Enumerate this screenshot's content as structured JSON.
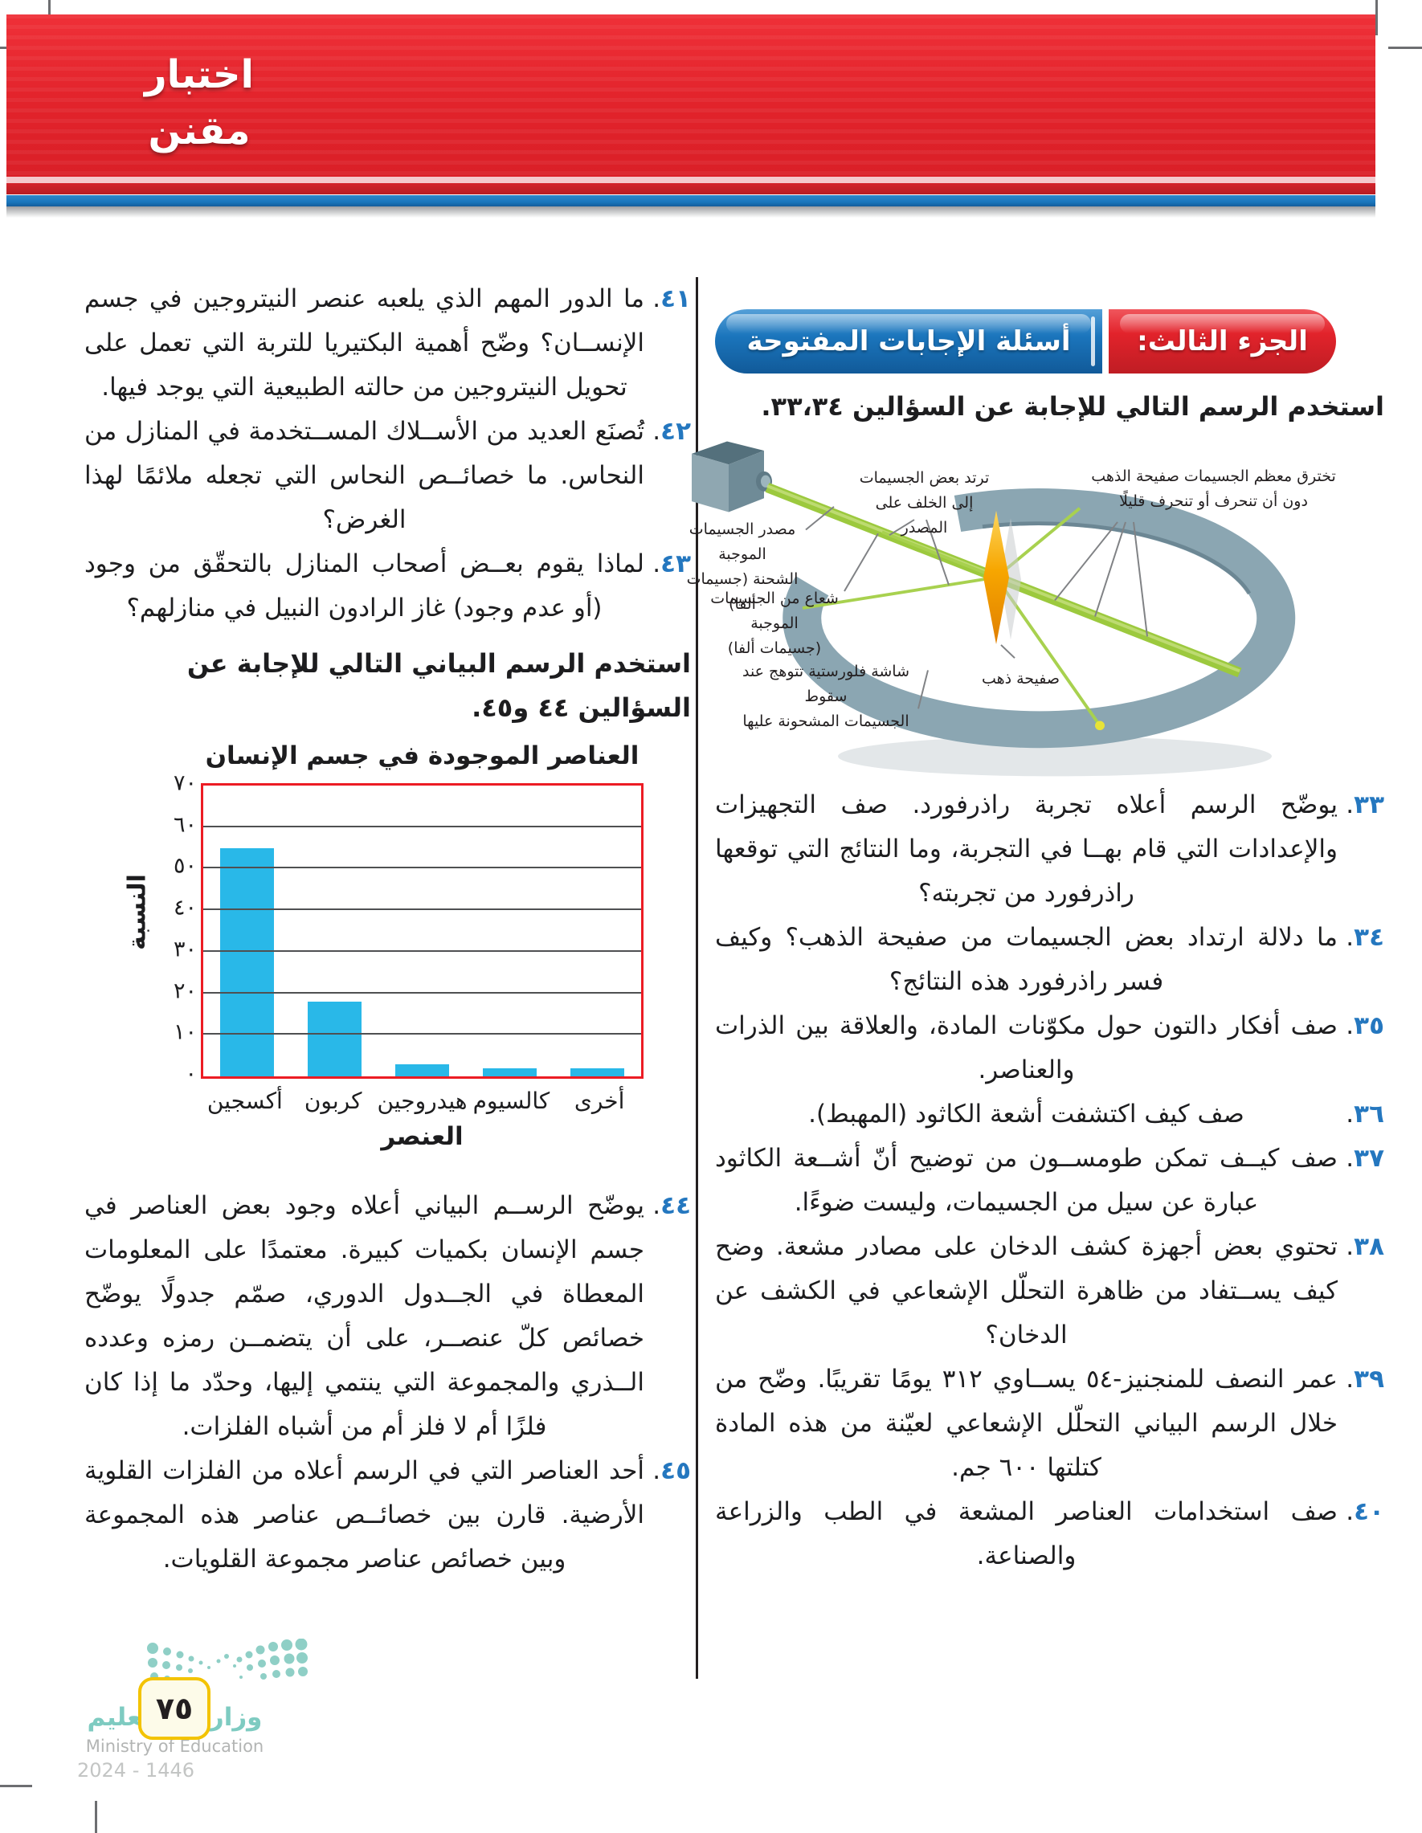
{
  "page": {
    "number": "٧٥"
  },
  "header": {
    "title_line1": "اختبار",
    "title_line2": "مقنن"
  },
  "right_column": {
    "part_badge": {
      "part_label": "الجزء الثالث:",
      "part_title": "أسئلة الإجابات المفتوحة"
    },
    "intro": "استخدم الرسم التالي للإجابة عن السؤالين ٣٣،٣٤.",
    "diagram": {
      "labels": {
        "bounce": [
          "ترتد بعض الجسيمات",
          "إلى الخلف على المصدر"
        ],
        "penetrate": [
          "تخترق معظم الجسيمات صفيحة الذهب",
          "دون أن تنحرف أو تنحرف قليلًا"
        ],
        "source": [
          "مصدر الجسيمات الموجبة",
          "الشحنة (جسيمات ألفا)"
        ],
        "beam": [
          "شعاع من الجسيمات الموجبة",
          "(جسيمات ألفا)"
        ],
        "foil": "صفيحة ذهب",
        "screen": [
          "شاشة فلورستية تتوهج عند سقوط",
          "الجسيمات المشحونة عليها"
        ]
      }
    },
    "questions": [
      {
        "number": "٣٣",
        "text": "يوضّح الرسم أعلاه تجربة راذرفورد. صف التجهيزات والإعدادات التي قام بهــا في التجربة، وما النتائج التي توقعها راذرفورد من تجربته؟"
      },
      {
        "number": "٣٤",
        "text": "ما دلالة ارتداد بعض الجسيمات من صفيحة الذهب؟ وكيف فسر راذرفورد هذه النتائج؟"
      },
      {
        "number": "٣٥",
        "text": "صف أفكار دالتون حول مكوّنات المادة، والعلاقة بين الذرات والعناصر."
      },
      {
        "number": "٣٦",
        "text": "صف كيف اكتشفت أشعة الكاثود (المهبط)."
      },
      {
        "number": "٣٧",
        "text": "صف كيــف تمكن طومســون من توضيح أنّ أشــعة الكاثود عبارة عن سيل من الجسيمات، وليست ضوءًا."
      },
      {
        "number": "٣٨",
        "text": "تحتوي بعض أجهزة كشف الدخان على مصادر مشعة. وضح كيف يســتفاد من ظاهرة التحلّل الإشعاعي في الكشف عن الدخان؟"
      },
      {
        "number": "٣٩",
        "text": "عمر النصف للمنجنيز-٥٤ يســاوي ٣١٢ يومًا تقريبًا. وضّح من خلال الرسم البياني التحلّل الإشعاعي لعيّنة من هذه المادة كتلتها ٦٠٠ جم."
      },
      {
        "number": "٤٠",
        "text": "صف استخدامات العناصر المشعة في الطب والزراعة والصناعة."
      }
    ]
  },
  "left_column": {
    "questions": [
      {
        "number": "٤١",
        "text": "ما الدور المهم الذي يلعبه عنصر النيتروجين في جسم الإنســان؟ وضّح أهمية البكتيريا للتربة التي تعمل على تحويل النيتروجين من حالته الطبيعية التي يوجد فيها."
      },
      {
        "number": "٤٢",
        "text": "تُصنَع العديد من الأســلاك المســتخدمة في المنازل من النحاس. ما خصائــص النحاس التي تجعله ملائمًا لهذا الغرض؟"
      },
      {
        "number": "٤٣",
        "text": "لماذا يقوم بعــض أصحاب المنازل بالتحقّق من وجود (أو عدم وجود) غاز الرادون النبيل في منازلهم؟"
      },
      {
        "number": "٤٤",
        "text": "يوضّح الرســم البياني أعلاه وجود بعض العناصر في جسم الإنسان بكميات كبيرة. معتمدًا على المعلومات المعطاة في الجــدول الدوري، صمّم جدولًا يوضّح خصائص كلّ عنصــر، على أن يتضمــن رمزه وعدده الــذري والمجموعة التي ينتمي إليها، وحدّد ما إذا كان فلزًا أم لا فلز أم من أشباه الفلزات."
      },
      {
        "number": "٤٥",
        "text": "أحد العناصر التي في الرسم أعلاه من الفلزات القلوية الأرضية. قارن بين خصائــص عناصر هذه المجموعة وبين خصائص عناصر مجموعة القلويات."
      }
    ],
    "chart_intro": "استخدم الرسم البياني التالي للإجابة عن السؤالين ٤٤ و٤٥."
  },
  "chart_data": {
    "type": "bar",
    "title": "العناصر الموجودة في جسم الإنسان",
    "categories": [
      "أكسجين",
      "كربون",
      "هيدروجين",
      "كالسيوم",
      "أخرى"
    ],
    "values": [
      55,
      18,
      3,
      2,
      2
    ],
    "xlabel": "العنصر",
    "ylabel": "النسبة",
    "ylim": [
      0,
      70
    ],
    "yticks_labels": [
      "٠",
      "١٠",
      "٢٠",
      "٣٠",
      "٤٠",
      "٥٠",
      "٦٠",
      "٧٠"
    ],
    "grid": true,
    "legend": false,
    "bar_color": "#29b8e8",
    "frame_color": "#ec1c24"
  },
  "footer": {
    "ministry_ar": "وزارة التــعليم",
    "ministry_en": "Ministry of Education",
    "year": "2024 - 1446"
  },
  "colors": {
    "banner_red": "#e2232b",
    "stripe_blue": "#1a77bd",
    "badge_red": "#e2232b",
    "badge_blue": "#1b75bc",
    "number_blue": "#2477bf",
    "bar_cyan": "#29b8e8",
    "chart_frame_red": "#ec1c24",
    "logo_teal": "#7ecbc1",
    "pagebox_yellow": "#f3c300"
  }
}
